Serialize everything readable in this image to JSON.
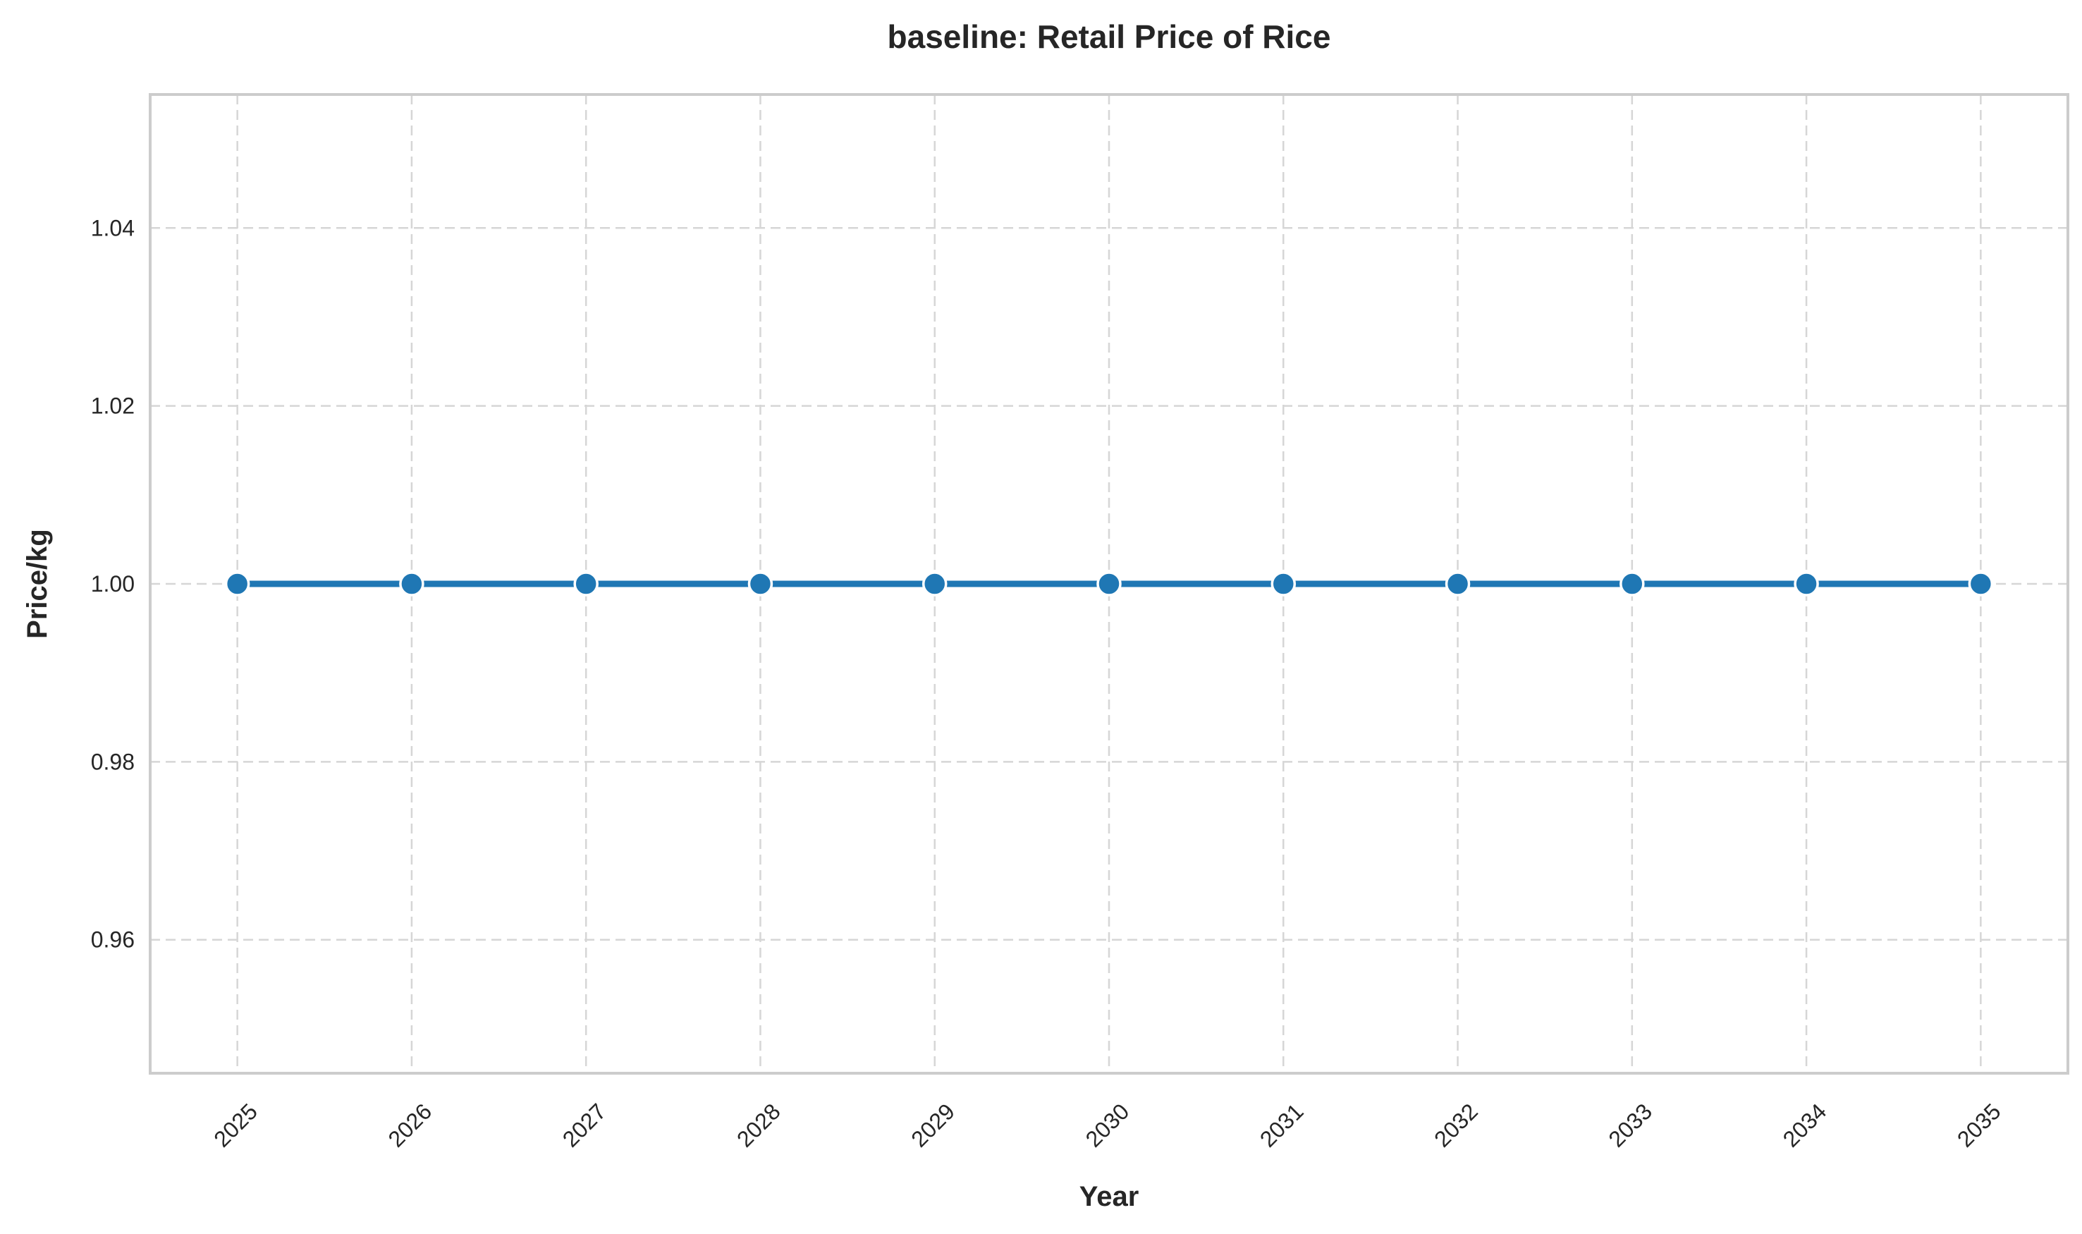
{
  "chart_data": {
    "type": "line",
    "title": "baseline: Retail Price of Rice",
    "xlabel": "Year",
    "ylabel": "Price/kg",
    "x": [
      2025,
      2026,
      2027,
      2028,
      2029,
      2030,
      2031,
      2032,
      2033,
      2034,
      2035
    ],
    "series": [
      {
        "values": [
          1.0,
          1.0,
          1.0,
          1.0,
          1.0,
          1.0,
          1.0,
          1.0,
          1.0,
          1.0,
          1.0
        ],
        "color": "#1f77b4"
      }
    ],
    "xlim": [
      2024.5,
      2035.5
    ],
    "ylim": [
      0.945,
      1.055
    ],
    "yticks": [
      0.96,
      0.98,
      1.0,
      1.02,
      1.04
    ],
    "ytick_labels": [
      "0.96",
      "0.98",
      "1.00",
      "1.02",
      "1.04"
    ],
    "xtick_labels": [
      "2025",
      "2026",
      "2027",
      "2028",
      "2029",
      "2030",
      "2031",
      "2032",
      "2033",
      "2034",
      "2035"
    ],
    "grid": true,
    "marker": "circle"
  }
}
